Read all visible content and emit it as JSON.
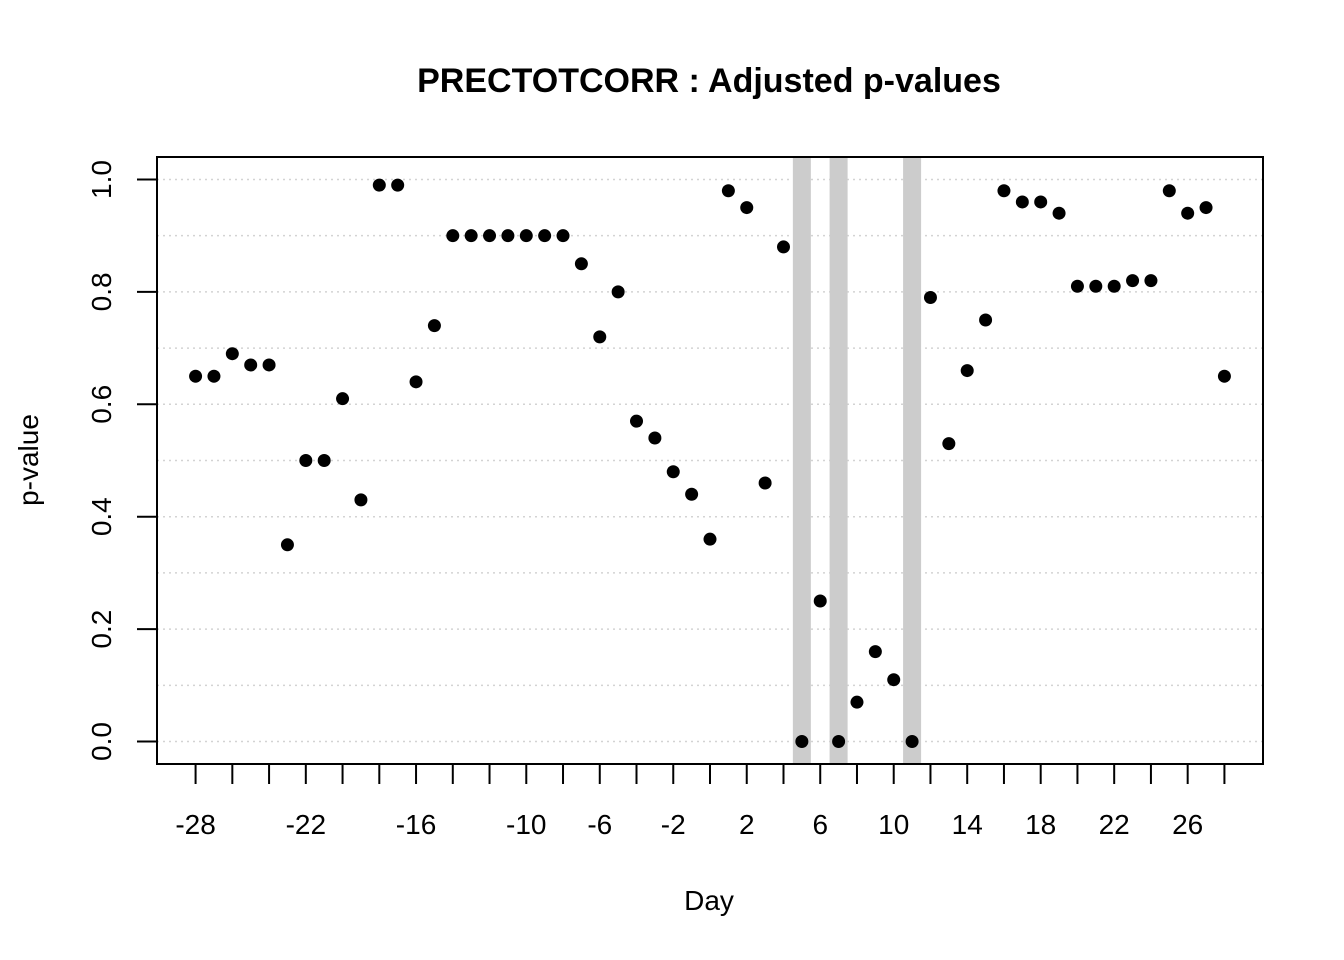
{
  "chart_data": {
    "type": "scatter",
    "title": "PRECTOTCORR : Adjusted p-values",
    "xlabel": "Day",
    "ylabel": "p-value",
    "xlim": [
      -30.1,
      30.1
    ],
    "ylim": [
      -0.04,
      1.04
    ],
    "x_ticks": [
      -28,
      -26,
      -24,
      -22,
      -20,
      -18,
      -16,
      -14,
      -12,
      -10,
      -8,
      -6,
      -4,
      -2,
      0,
      2,
      4,
      6,
      8,
      10,
      12,
      14,
      16,
      18,
      20,
      22,
      24,
      26,
      28
    ],
    "x_tick_labels": [
      "-28",
      "",
      "",
      "-22",
      "",
      "",
      "-16",
      "",
      "",
      "-10",
      "",
      "-6",
      "",
      "-2",
      "",
      "2",
      "",
      "6",
      "",
      "10",
      "",
      "14",
      "",
      "18",
      "",
      "22",
      "",
      "26",
      ""
    ],
    "y_ticks": [
      0.0,
      0.2,
      0.4,
      0.6,
      0.8,
      1.0
    ],
    "y_tick_labels": [
      "0.0",
      "0.2",
      "0.4",
      "0.6",
      "0.8",
      "1.0"
    ],
    "grid_y": [
      0.0,
      0.1,
      0.2,
      0.3,
      0.4,
      0.5,
      0.6,
      0.7,
      0.8,
      0.9,
      1.0
    ],
    "grid": true,
    "highlight_days": [
      5,
      7,
      11
    ],
    "highlight_color": "#cccccc",
    "point_color": "#000000",
    "x": [
      -28,
      -27,
      -26,
      -25,
      -24,
      -23,
      -22,
      -21,
      -20,
      -19,
      -18,
      -17,
      -16,
      -15,
      -14,
      -13,
      -12,
      -11,
      -10,
      -9,
      -8,
      -7,
      -6,
      -5,
      -4,
      -3,
      -2,
      -1,
      0,
      1,
      2,
      3,
      4,
      5,
      6,
      7,
      8,
      9,
      10,
      11,
      12,
      13,
      14,
      15,
      16,
      17,
      18,
      19,
      20,
      21,
      22,
      23,
      24,
      25,
      26,
      27,
      28
    ],
    "y": [
      0.65,
      0.65,
      0.69,
      0.67,
      0.67,
      0.35,
      0.5,
      0.5,
      0.61,
      0.43,
      0.99,
      0.99,
      0.64,
      0.74,
      0.9,
      0.9,
      0.9,
      0.9,
      0.9,
      0.9,
      0.9,
      0.85,
      0.72,
      0.8,
      0.57,
      0.54,
      0.48,
      0.44,
      0.36,
      0.98,
      0.95,
      0.46,
      0.88,
      0.0,
      0.25,
      0.0,
      0.07,
      0.16,
      0.11,
      0.0,
      0.79,
      0.53,
      0.66,
      0.75,
      0.98,
      0.96,
      0.96,
      0.94,
      0.81,
      0.81,
      0.81,
      0.82,
      0.82,
      0.98,
      0.94,
      0.95,
      0.65
    ]
  }
}
